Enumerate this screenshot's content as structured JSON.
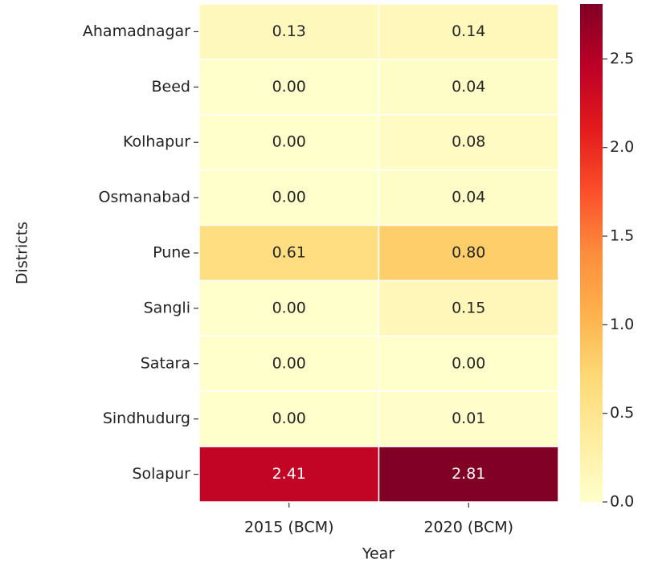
{
  "chart_data": {
    "type": "heatmap",
    "x_label": "Year",
    "y_label": "Districts",
    "x_categories": [
      "2015 (BCM)",
      "2020 (BCM)"
    ],
    "y_categories": [
      "Ahamadnagar",
      "Beed",
      "Kolhapur",
      "Osmanabad",
      "Pune",
      "Sangli",
      "Satara",
      "Sindhudurg",
      "Solapur"
    ],
    "values": [
      [
        0.13,
        0.14
      ],
      [
        0,
        0.04
      ],
      [
        0,
        0.08
      ],
      [
        0,
        0.04
      ],
      [
        0.61,
        0.8
      ],
      [
        0,
        0.15
      ],
      [
        0,
        0
      ],
      [
        0,
        0.01
      ],
      [
        2.41,
        2.81
      ]
    ],
    "value_labels": [
      [
        "0.13",
        "0.14"
      ],
      [
        "0.00",
        "0.04"
      ],
      [
        "0.00",
        "0.08"
      ],
      [
        "0.00",
        "0.04"
      ],
      [
        "0.61",
        "0.80"
      ],
      [
        "0.00",
        "0.15"
      ],
      [
        "0.00",
        "0.00"
      ],
      [
        "0.00",
        "0.01"
      ],
      [
        "2.41",
        "2.81"
      ]
    ],
    "colormap": [
      "#ffffcc",
      "#ffeda0",
      "#fed976",
      "#feb24c",
      "#fd8d3c",
      "#fc4e2a",
      "#e31a1c",
      "#bd0026",
      "#800026"
    ],
    "clim": [
      0,
      2.81
    ],
    "cticks": [
      {
        "value": 0,
        "label": "0.0"
      },
      0.5,
      {
        "value": 1,
        "label": "1.0"
      },
      1.5,
      {
        "value": 2,
        "label": "2.0"
      },
      2.5
    ]
  }
}
